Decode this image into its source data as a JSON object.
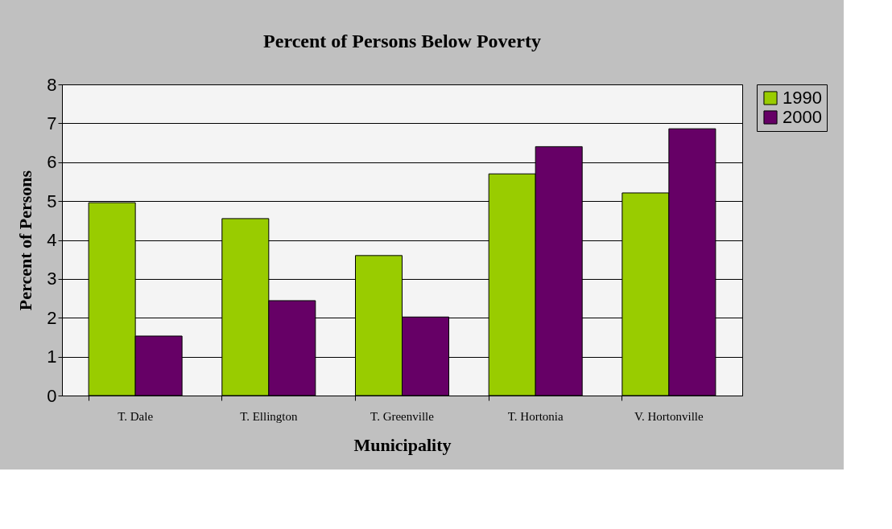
{
  "chart_data": {
    "type": "bar",
    "title": "Percent of Persons Below Poverty",
    "xlabel": "Municipality",
    "ylabel": "Percent of Persons",
    "categories": [
      "T. Dale",
      "T. Ellington",
      "T. Greenville",
      "T. Hortonia",
      "V. Hortonville"
    ],
    "series": [
      {
        "name": "1990",
        "color": "#99cc00",
        "values": [
          4.96,
          4.55,
          3.6,
          5.7,
          5.21
        ]
      },
      {
        "name": "2000",
        "color": "#660066",
        "values": [
          1.53,
          2.44,
          2.02,
          6.4,
          6.86
        ]
      }
    ],
    "ylim": [
      0,
      8
    ],
    "yticks": [
      0,
      1,
      2,
      3,
      4,
      5,
      6,
      7,
      8
    ],
    "grid": "y",
    "legend": "right"
  }
}
